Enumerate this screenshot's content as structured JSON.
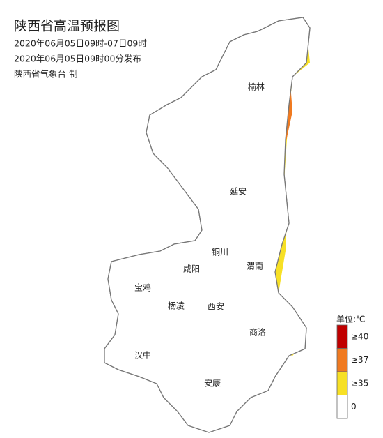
{
  "header": {
    "title": "陕西省高温预报图",
    "lines": [
      "2020年06月05日09时-07日09时",
      "2020年06月05日09时00分发布",
      "陕西省气象台 制"
    ]
  },
  "cities": [
    "榆林",
    "延安",
    "铜川",
    "咸阳",
    "渭南",
    "宝鸡",
    "杨凌",
    "西安",
    "商洛",
    "汉中",
    "安康"
  ],
  "legend": {
    "unit": "单位:℃",
    "items": [
      {
        "label": "≥40",
        "color": "#c00000"
      },
      {
        "label": "≥37",
        "color": "#f07a20"
      },
      {
        "label": "≥35",
        "color": "#f7e025"
      },
      {
        "label": "0",
        "color": "#ffffff"
      }
    ]
  }
}
